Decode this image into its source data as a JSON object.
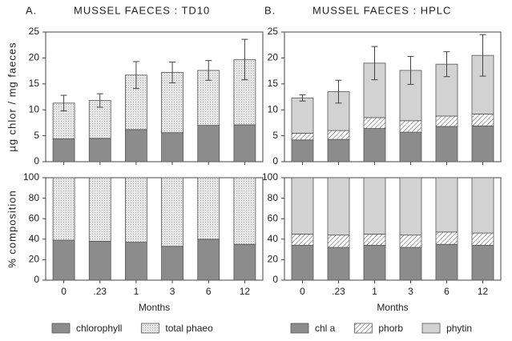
{
  "chart_data": [
    {
      "type": "stacked_bar",
      "panel": "A.",
      "title": "MUSSEL FAECES : TD10",
      "ylabel": "µg chlor / mg faeces",
      "ylim": [
        0,
        25
      ],
      "yticks": [
        0,
        5,
        10,
        15,
        20,
        25
      ],
      "series": [
        {
          "name": "chlorophyll",
          "color": "#8c8c8c",
          "pattern": "none",
          "values": [
            4.4,
            4.5,
            6.2,
            5.6,
            7.0,
            7.1
          ]
        },
        {
          "name": "total phaeo",
          "color": "#e6e6e6",
          "pattern": "dots",
          "values": [
            6.9,
            7.3,
            10.5,
            11.6,
            10.6,
            12.6
          ],
          "errors": [
            1.5,
            1.3,
            2.6,
            2.0,
            1.9,
            3.9
          ]
        }
      ]
    },
    {
      "type": "stacked_bar",
      "panel": "B.",
      "title": "MUSSEL FAECES : HPLC",
      "ylim": [
        0,
        25
      ],
      "yticks": [
        0,
        5,
        10,
        15,
        20,
        25
      ],
      "series": [
        {
          "name": "chl a",
          "color": "#8c8c8c",
          "pattern": "none",
          "values": [
            4.2,
            4.3,
            6.4,
            5.7,
            6.8,
            6.9
          ]
        },
        {
          "name": "phorb",
          "color": "#ffffff",
          "pattern": "hatch",
          "values": [
            1.3,
            1.7,
            2.1,
            2.2,
            2.0,
            2.3
          ]
        },
        {
          "name": "phytin",
          "color": "#d2d2d2",
          "pattern": "none",
          "values": [
            6.8,
            7.5,
            10.5,
            9.7,
            10.0,
            11.3
          ],
          "errors": [
            0.6,
            2.2,
            3.2,
            2.7,
            2.4,
            4.0
          ]
        }
      ]
    },
    {
      "type": "stacked_bar",
      "ylabel": "% composition",
      "xlabel": "Months",
      "categories": [
        "0",
        ".23",
        "1",
        "3",
        "6",
        "12"
      ],
      "ylim": [
        0,
        100
      ],
      "yticks": [
        0,
        20,
        40,
        60,
        80,
        100
      ],
      "series": [
        {
          "color": "#8c8c8c",
          "pattern": "none",
          "values": [
            39,
            38,
            37,
            33,
            40,
            35
          ]
        },
        {
          "color": "#e6e6e6",
          "pattern": "dots",
          "values": [
            61,
            62,
            63,
            67,
            60,
            65
          ]
        }
      ]
    },
    {
      "type": "stacked_bar",
      "xlabel": "Months",
      "categories": [
        "0",
        ".23",
        "1",
        "3",
        "6",
        "12"
      ],
      "ylim": [
        0,
        100
      ],
      "yticks": [
        0,
        20,
        40,
        60,
        80,
        100
      ],
      "series": [
        {
          "color": "#8c8c8c",
          "pattern": "none",
          "values": [
            34,
            32,
            34,
            32,
            35,
            34
          ]
        },
        {
          "color": "#ffffff",
          "pattern": "hatch",
          "values": [
            11,
            12,
            11,
            12,
            12,
            12
          ]
        },
        {
          "color": "#d2d2d2",
          "pattern": "none",
          "values": [
            55,
            56,
            55,
            56,
            53,
            54
          ]
        }
      ]
    }
  ]
}
